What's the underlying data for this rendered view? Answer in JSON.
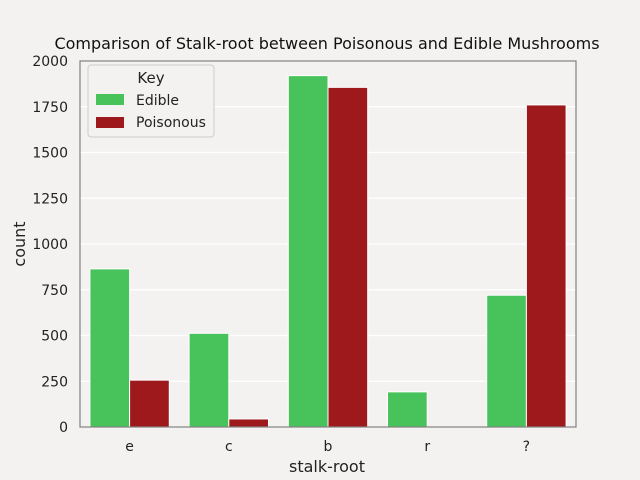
{
  "chart_data": {
    "type": "bar",
    "title": "Comparison of Stalk-root between Poisonous and Edible Mushrooms",
    "xlabel": "stalk-root",
    "ylabel": "count",
    "categories": [
      "e",
      "c",
      "b",
      "r",
      "?"
    ],
    "ylim": [
      0,
      2000
    ],
    "yticks": [
      0,
      250,
      500,
      750,
      1000,
      1250,
      1500,
      1750,
      2000
    ],
    "grid": true,
    "legend": {
      "title": "Key",
      "position": "top-left"
    },
    "series": [
      {
        "name": "Edible",
        "color": "#48c25a",
        "values": [
          864,
          512,
          1920,
          192,
          720
        ]
      },
      {
        "name": "Poisonous",
        "color": "#9e191c",
        "values": [
          256,
          44,
          1856,
          0,
          1760
        ]
      }
    ]
  }
}
